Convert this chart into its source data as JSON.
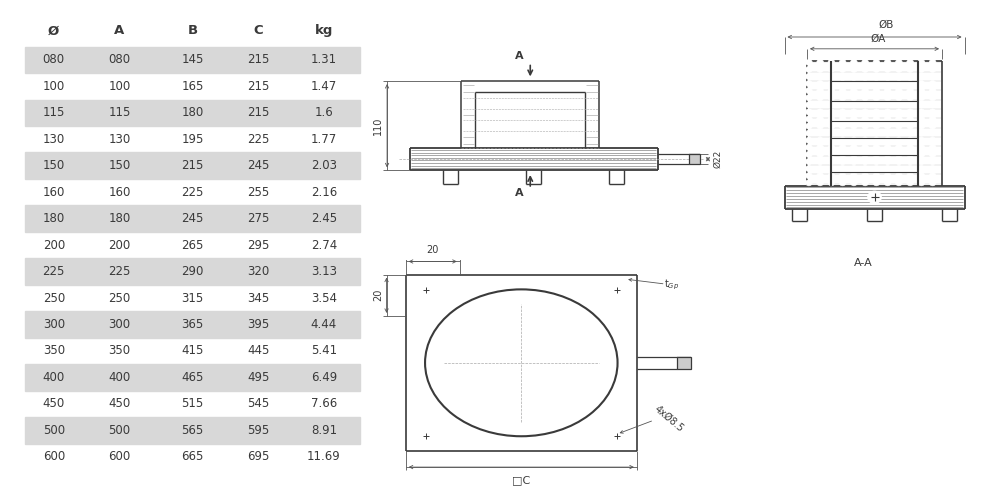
{
  "table_headers": [
    "Ø",
    "A",
    "B",
    "C",
    "kg"
  ],
  "table_rows": [
    [
      "080",
      "080",
      "145",
      "215",
      "1.31"
    ],
    [
      "100",
      "100",
      "165",
      "215",
      "1.47"
    ],
    [
      "115",
      "115",
      "180",
      "215",
      "1.6"
    ],
    [
      "130",
      "130",
      "195",
      "225",
      "1.77"
    ],
    [
      "150",
      "150",
      "215",
      "245",
      "2.03"
    ],
    [
      "160",
      "160",
      "225",
      "255",
      "2.16"
    ],
    [
      "180",
      "180",
      "245",
      "275",
      "2.45"
    ],
    [
      "200",
      "200",
      "265",
      "295",
      "2.74"
    ],
    [
      "225",
      "225",
      "290",
      "320",
      "3.13"
    ],
    [
      "250",
      "250",
      "315",
      "345",
      "3.54"
    ],
    [
      "300",
      "300",
      "365",
      "395",
      "4.44"
    ],
    [
      "350",
      "350",
      "415",
      "445",
      "5.41"
    ],
    [
      "400",
      "400",
      "465",
      "495",
      "6.49"
    ],
    [
      "450",
      "450",
      "515",
      "545",
      "7.66"
    ],
    [
      "500",
      "500",
      "565",
      "595",
      "8.91"
    ],
    [
      "600",
      "600",
      "665",
      "695",
      "11.69"
    ]
  ],
  "shaded_rows": [
    0,
    2,
    4,
    6,
    8,
    10,
    12,
    14
  ],
  "bg_color": "#ffffff",
  "row_shade": "#d8d8d8",
  "text_color": "#3a3a3a",
  "line_color": "#3a3a3a",
  "dim_color": "#555555",
  "table_font_size": 8.5,
  "header_font_size": 9.5
}
